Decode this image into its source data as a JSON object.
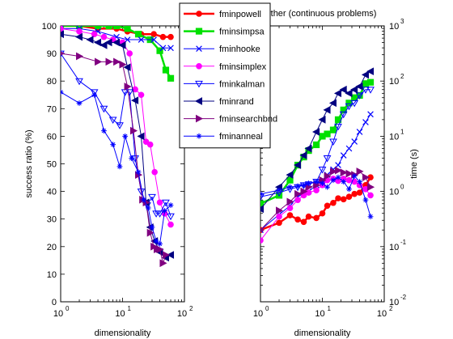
{
  "figure": {
    "right_title": "other (continuous problems)"
  },
  "chart_data": [
    {
      "type": "line",
      "xlabel": "dimensionality",
      "ylabel": "success ratio (%)",
      "xscale": "log",
      "xlim": [
        1,
        100
      ],
      "ylim": [
        0,
        100
      ],
      "x_ticks": [
        1,
        10,
        100
      ],
      "y_ticks": [
        0,
        10,
        20,
        30,
        40,
        50,
        60,
        70,
        80,
        90,
        100
      ],
      "series": [
        {
          "name": "fminpowell",
          "color": "#ff0000",
          "marker": "circle",
          "width": 2.5,
          "points": [
            [
              1,
              100
            ],
            [
              2,
              100
            ],
            [
              4,
              99
            ],
            [
              8,
              99
            ],
            [
              12,
              98
            ],
            [
              20,
              97
            ],
            [
              32,
              97
            ],
            [
              45,
              96
            ],
            [
              60,
              96
            ]
          ]
        },
        {
          "name": "fminsimpsa",
          "color": "#00e000",
          "marker": "square",
          "width": 2.5,
          "points": [
            [
              1,
              100
            ],
            [
              2,
              100
            ],
            [
              4,
              100
            ],
            [
              6,
              100
            ],
            [
              8,
              100
            ],
            [
              12,
              99
            ],
            [
              18,
              97
            ],
            [
              28,
              95
            ],
            [
              40,
              91
            ],
            [
              50,
              84
            ],
            [
              60,
              81
            ]
          ]
        },
        {
          "name": "fminhooke",
          "color": "#0000ff",
          "marker": "x",
          "width": 1,
          "points": [
            [
              1,
              99
            ],
            [
              2,
              99
            ],
            [
              4,
              98
            ],
            [
              8,
              96
            ],
            [
              12,
              95
            ],
            [
              20,
              95
            ],
            [
              32,
              95
            ],
            [
              45,
              92
            ],
            [
              60,
              92
            ]
          ]
        },
        {
          "name": "fminsimplex",
          "color": "#ff00ff",
          "marker": "circle",
          "width": 1,
          "points": [
            [
              1,
              99
            ],
            [
              2,
              98
            ],
            [
              3.5,
              97
            ],
            [
              5,
              96
            ],
            [
              7,
              95
            ],
            [
              10,
              94
            ],
            [
              13,
              90
            ],
            [
              16,
              77
            ],
            [
              20,
              75
            ],
            [
              24,
              58
            ],
            [
              28,
              57
            ],
            [
              33,
              47
            ],
            [
              40,
              36
            ],
            [
              48,
              32
            ],
            [
              60,
              28
            ]
          ]
        },
        {
          "name": "fminkalman",
          "color": "#0000ff",
          "marker": "tri_down",
          "width": 1,
          "points": [
            [
              1,
              90
            ],
            [
              2,
              80
            ],
            [
              3.5,
              76
            ],
            [
              5,
              70
            ],
            [
              7,
              66
            ],
            [
              9,
              64
            ],
            [
              11,
              76
            ],
            [
              13,
              76
            ],
            [
              16,
              52
            ],
            [
              20,
              40
            ],
            [
              25,
              35
            ],
            [
              30,
              38
            ],
            [
              35,
              32
            ],
            [
              40,
              32
            ],
            [
              50,
              36
            ],
            [
              60,
              31
            ]
          ]
        },
        {
          "name": "fminrand",
          "color": "#000080",
          "marker": "tri_left",
          "width": 1,
          "points": [
            [
              1,
              97
            ],
            [
              2,
              96
            ],
            [
              3,
              95
            ],
            [
              4,
              94
            ],
            [
              5,
              93
            ],
            [
              6,
              94
            ],
            [
              8,
              94
            ],
            [
              10,
              93
            ],
            [
              12,
              85
            ],
            [
              16,
              73
            ],
            [
              20,
              60
            ],
            [
              24,
              36
            ],
            [
              28,
              27
            ],
            [
              33,
              22
            ],
            [
              40,
              18
            ],
            [
              50,
              16
            ],
            [
              60,
              17
            ]
          ]
        },
        {
          "name": "fminsearchbnd",
          "color": "#800080",
          "marker": "tri_right",
          "width": 1,
          "points": [
            [
              1,
              90
            ],
            [
              2,
              89
            ],
            [
              4,
              87
            ],
            [
              6,
              87
            ],
            [
              8,
              87
            ],
            [
              10,
              86
            ],
            [
              12,
              78
            ],
            [
              15,
              62
            ],
            [
              18,
              46
            ],
            [
              21,
              37
            ],
            [
              24,
              36
            ],
            [
              28,
              25
            ],
            [
              32,
              20
            ],
            [
              36,
              19
            ],
            [
              40,
              19
            ],
            [
              45,
              14
            ],
            [
              50,
              17
            ]
          ]
        },
        {
          "name": "fminanneal",
          "color": "#0000ff",
          "marker": "star",
          "width": 1,
          "points": [
            [
              1,
              76
            ],
            [
              2,
              72
            ],
            [
              3.5,
              75
            ],
            [
              5,
              62
            ],
            [
              7,
              57
            ],
            [
              9,
              49
            ],
            [
              11,
              60
            ],
            [
              14,
              52
            ],
            [
              18,
              47
            ],
            [
              22,
              37
            ],
            [
              26,
              34
            ],
            [
              30,
              27
            ],
            [
              35,
              22
            ],
            [
              40,
              21
            ],
            [
              48,
              33
            ],
            [
              60,
              35
            ]
          ]
        }
      ]
    },
    {
      "type": "line",
      "title": "other (continuous problems)",
      "xlabel": "dimensionality",
      "ylabel": "time (s)",
      "xscale": "log",
      "yscale": "log",
      "xlim": [
        1,
        100
      ],
      "ylim": [
        0.01,
        1000
      ],
      "x_ticks": [
        1,
        10,
        100
      ],
      "y_ticks": [
        0.01,
        0.1,
        1,
        10,
        100,
        1000
      ],
      "series": [
        {
          "name": "fminpowell",
          "color": "#ff0000",
          "marker": "circle",
          "width": 2.5,
          "points": [
            [
              1,
              0.2
            ],
            [
              2,
              0.27
            ],
            [
              3,
              0.37
            ],
            [
              4,
              0.31
            ],
            [
              5,
              0.28
            ],
            [
              6,
              0.35
            ],
            [
              8,
              0.33
            ],
            [
              10,
              0.4
            ],
            [
              12,
              0.55
            ],
            [
              15,
              0.62
            ],
            [
              18,
              0.75
            ],
            [
              22,
              0.72
            ],
            [
              27,
              0.8
            ],
            [
              33,
              0.9
            ],
            [
              40,
              0.95
            ],
            [
              50,
              1.3
            ],
            [
              60,
              1.8
            ]
          ]
        },
        {
          "name": "fminsimpsa",
          "color": "#00e000",
          "marker": "square",
          "width": 2.5,
          "points": [
            [
              1,
              0.6
            ],
            [
              2,
              0.85
            ],
            [
              3,
              1.6
            ],
            [
              4,
              3
            ],
            [
              5,
              4.2
            ],
            [
              6,
              5.5
            ],
            [
              8,
              7
            ],
            [
              10,
              10
            ],
            [
              12,
              11
            ],
            [
              15,
              13
            ],
            [
              18,
              20
            ],
            [
              22,
              30
            ],
            [
              27,
              40
            ],
            [
              33,
              50
            ],
            [
              40,
              55
            ],
            [
              50,
              90
            ],
            [
              60,
              95
            ]
          ]
        },
        {
          "name": "fminhooke",
          "color": "#0000ff",
          "marker": "x",
          "width": 1,
          "points": [
            [
              1,
              0.2
            ],
            [
              2,
              0.38
            ],
            [
              3,
              0.55
            ],
            [
              4,
              0.8
            ],
            [
              5,
              0.9
            ],
            [
              6,
              1
            ],
            [
              8,
              1.3
            ],
            [
              10,
              1.6
            ],
            [
              12,
              2
            ],
            [
              15,
              2.5
            ],
            [
              18,
              3
            ],
            [
              22,
              4.5
            ],
            [
              27,
              6
            ],
            [
              33,
              8
            ],
            [
              40,
              12
            ],
            [
              50,
              18
            ],
            [
              60,
              25
            ]
          ]
        },
        {
          "name": "fminsimplex",
          "color": "#ff00ff",
          "marker": "circle",
          "width": 1,
          "points": [
            [
              1,
              0.13
            ],
            [
              2,
              0.35
            ],
            [
              3,
              0.5
            ],
            [
              4,
              0.7
            ],
            [
              5,
              0.85
            ],
            [
              6,
              0.95
            ],
            [
              8,
              1.05
            ],
            [
              10,
              1.3
            ],
            [
              12,
              1.6
            ],
            [
              15,
              1.7
            ],
            [
              18,
              1.55
            ],
            [
              22,
              1.7
            ],
            [
              27,
              1.6
            ],
            [
              33,
              1.5
            ],
            [
              40,
              1.3
            ],
            [
              50,
              1.1
            ],
            [
              60,
              0.85
            ]
          ]
        },
        {
          "name": "fminkalman",
          "color": "#0000ff",
          "marker": "tri_down",
          "width": 1,
          "points": [
            [
              1,
              0.8
            ],
            [
              2,
              0.95
            ],
            [
              3,
              1.1
            ],
            [
              4,
              1.2
            ],
            [
              5,
              1.3
            ],
            [
              6,
              1.35
            ],
            [
              8,
              1.5
            ],
            [
              10,
              2.5
            ],
            [
              12,
              4
            ],
            [
              15,
              8
            ],
            [
              18,
              15
            ],
            [
              22,
              25
            ],
            [
              27,
              35
            ],
            [
              33,
              40
            ],
            [
              40,
              55
            ],
            [
              50,
              70
            ],
            [
              60,
              70
            ]
          ]
        },
        {
          "name": "fminrand",
          "color": "#000080",
          "marker": "tri_left",
          "width": 1,
          "points": [
            [
              1,
              0.48
            ],
            [
              2,
              1.2
            ],
            [
              3,
              2
            ],
            [
              4,
              3
            ],
            [
              5,
              4.5
            ],
            [
              6,
              6
            ],
            [
              8,
              12
            ],
            [
              10,
              20
            ],
            [
              12,
              30
            ],
            [
              15,
              40
            ],
            [
              18,
              60
            ],
            [
              22,
              70
            ],
            [
              27,
              60
            ],
            [
              33,
              70
            ],
            [
              40,
              80
            ],
            [
              50,
              130
            ],
            [
              60,
              150
            ]
          ]
        },
        {
          "name": "fminsearchbnd",
          "color": "#800080",
          "marker": "tri_right",
          "width": 1,
          "points": [
            [
              1,
              0.2
            ],
            [
              2,
              0.45
            ],
            [
              3,
              0.65
            ],
            [
              4,
              0.9
            ],
            [
              5,
              1
            ],
            [
              6,
              1.2
            ],
            [
              8,
              1.3
            ],
            [
              10,
              1.6
            ],
            [
              12,
              1.9
            ],
            [
              15,
              2.3
            ],
            [
              18,
              2.4
            ],
            [
              22,
              2.2
            ],
            [
              27,
              2.1
            ],
            [
              33,
              2
            ],
            [
              40,
              2.3
            ],
            [
              50,
              1.8
            ],
            [
              60,
              1.2
            ]
          ]
        },
        {
          "name": "fminanneal",
          "color": "#0000ff",
          "marker": "star",
          "width": 1,
          "points": [
            [
              1,
              0.9
            ],
            [
              2,
              1.05
            ],
            [
              3,
              1.2
            ],
            [
              4,
              1.25
            ],
            [
              5,
              1.3
            ],
            [
              6,
              1.4
            ],
            [
              8,
              1.5
            ],
            [
              10,
              1.4
            ],
            [
              12,
              1.2
            ],
            [
              15,
              1.6
            ],
            [
              18,
              1.8
            ],
            [
              22,
              1.5
            ],
            [
              27,
              1.1
            ],
            [
              33,
              1.9
            ],
            [
              40,
              1.5
            ],
            [
              50,
              0.7
            ],
            [
              60,
              0.35
            ]
          ]
        }
      ]
    }
  ]
}
